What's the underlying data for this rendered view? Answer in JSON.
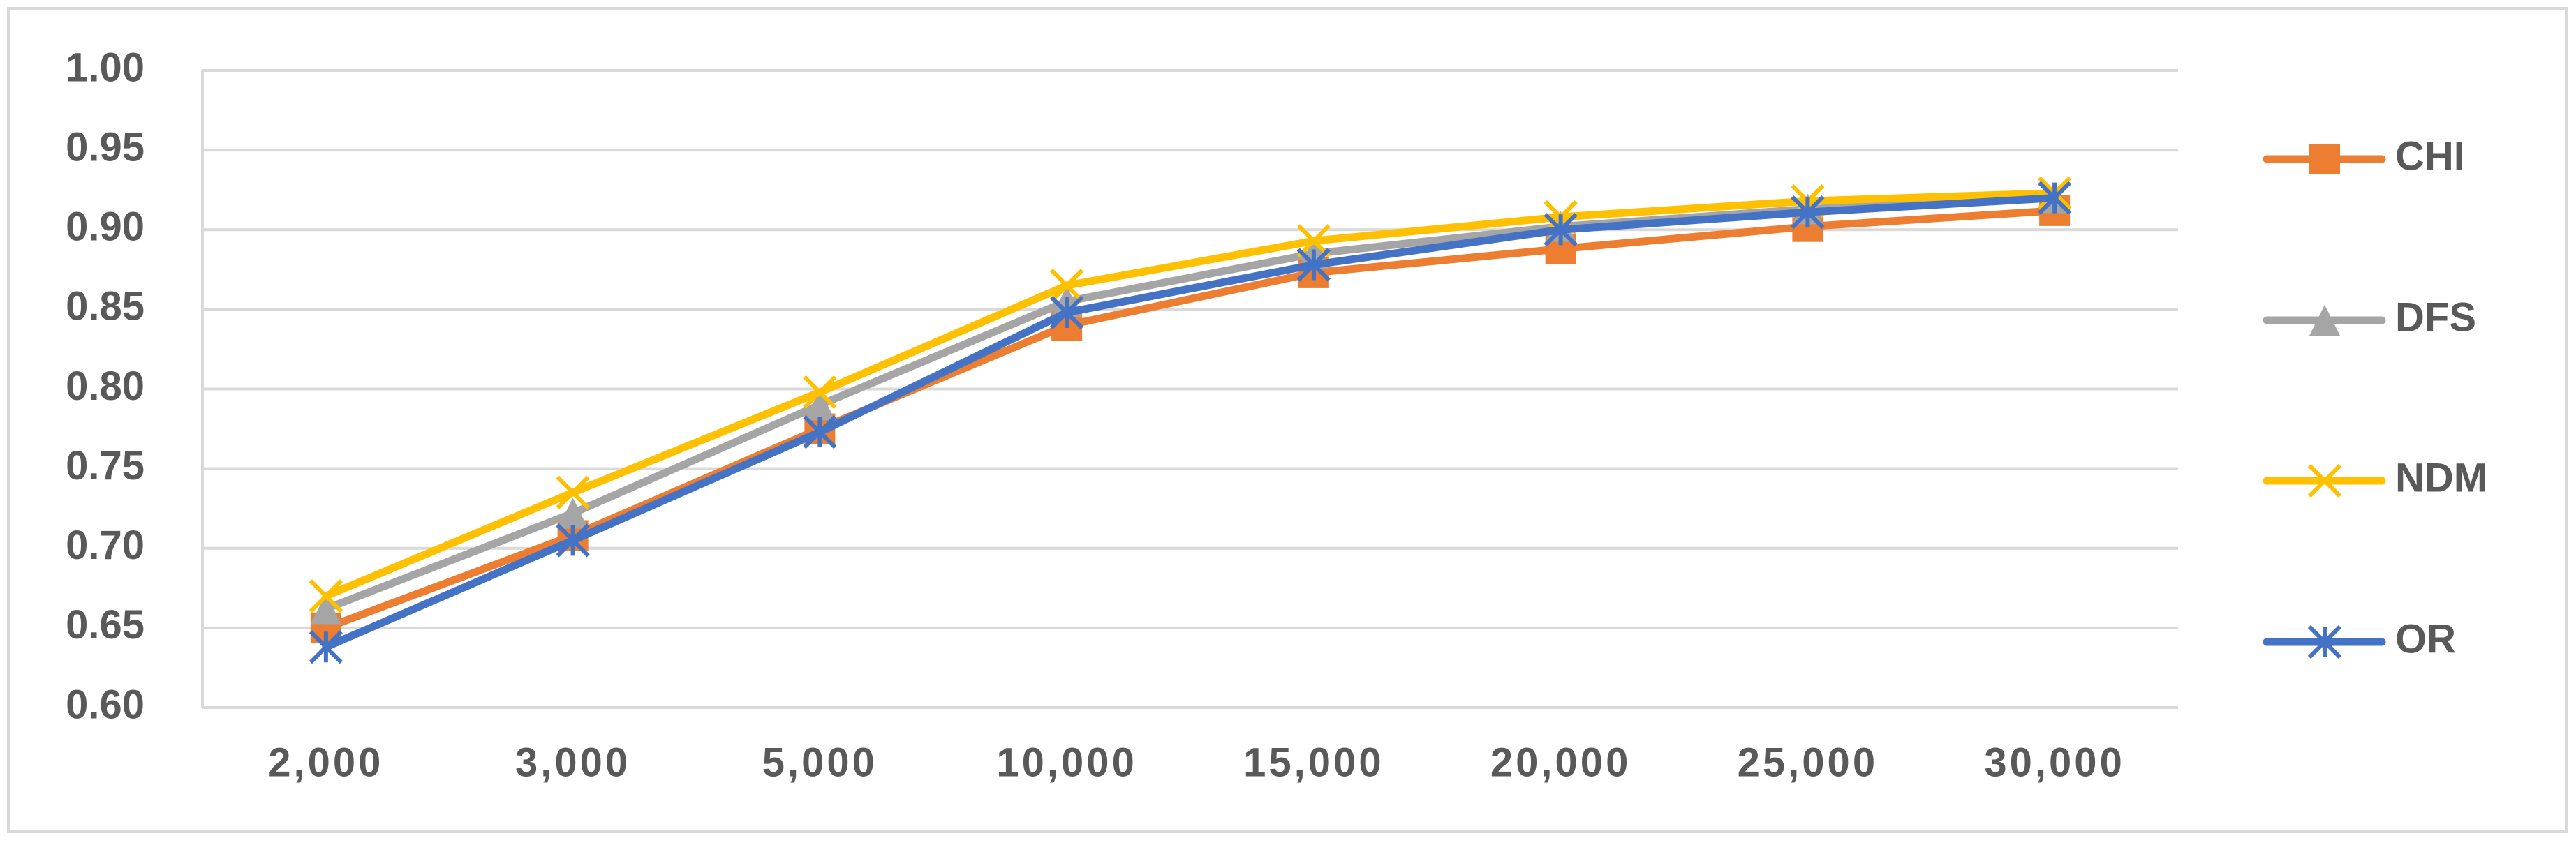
{
  "chart_data": {
    "type": "line",
    "categories": [
      "2,000",
      "3,000",
      "5,000",
      "10,000",
      "15,000",
      "20,000",
      "25,000",
      "30,000"
    ],
    "series": [
      {
        "name": "CHI",
        "color": "#ED7D31",
        "marker": "square",
        "values": [
          0.65,
          0.708,
          0.775,
          0.84,
          0.873,
          0.888,
          0.902,
          0.912
        ]
      },
      {
        "name": "DFS",
        "color": "#A5A5A5",
        "marker": "triangle",
        "values": [
          0.662,
          0.722,
          0.79,
          0.855,
          0.885,
          0.902,
          0.913,
          0.92
        ]
      },
      {
        "name": "NDM",
        "color": "#FFC000",
        "marker": "x",
        "values": [
          0.67,
          0.735,
          0.798,
          0.865,
          0.893,
          0.908,
          0.918,
          0.923
        ]
      },
      {
        "name": "OR",
        "color": "#4472C4",
        "marker": "star",
        "values": [
          0.638,
          0.705,
          0.773,
          0.848,
          0.878,
          0.9,
          0.911,
          0.92
        ]
      }
    ],
    "ylim": [
      0.6,
      1.0
    ],
    "yticks": [
      {
        "value": 0.6,
        "label": "0.60"
      },
      0.65,
      {
        "value": 0.7,
        "label": "0.70"
      },
      0.75,
      {
        "value": 0.8,
        "label": "0.80"
      },
      0.85,
      {
        "value": 0.9,
        "label": "0.90"
      },
      0.95,
      {
        "value": 1.0,
        "label": "1.00"
      }
    ],
    "grid": true,
    "legend": "right"
  }
}
